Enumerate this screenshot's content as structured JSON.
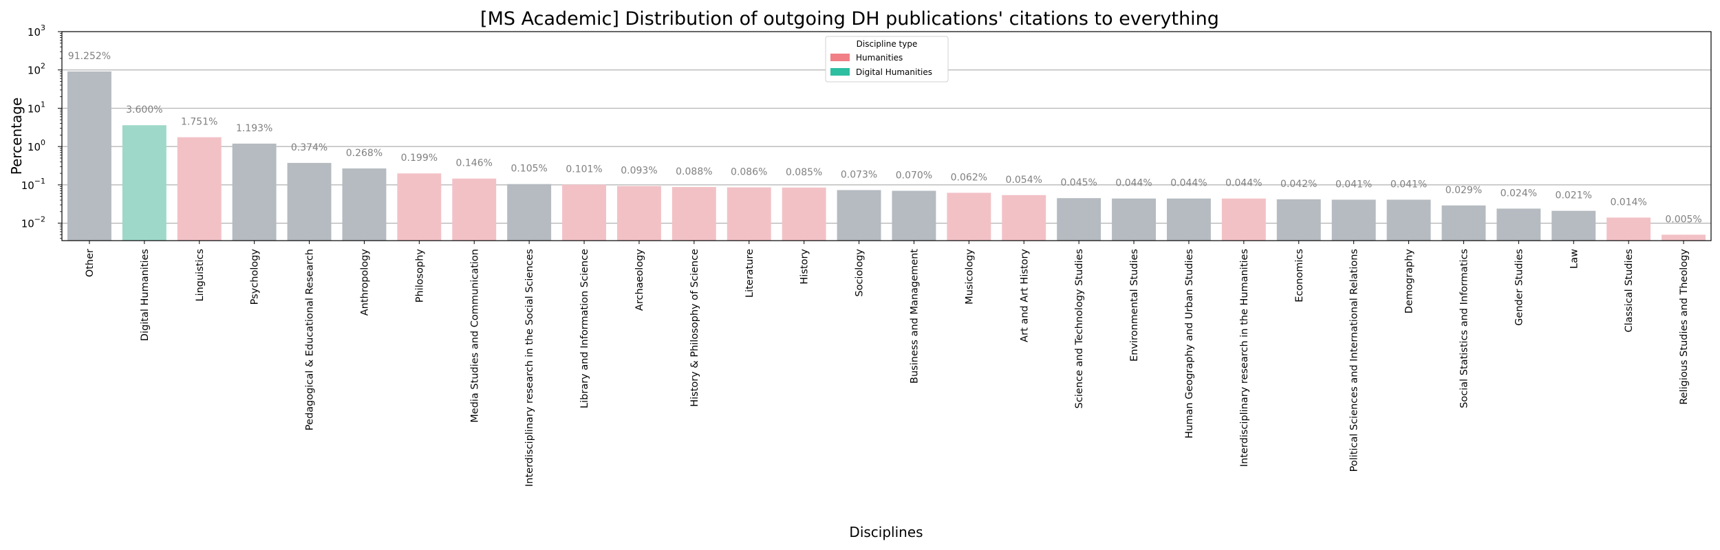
{
  "chart_data": {
    "type": "bar",
    "title": "[MS Academic] Distribution of outgoing DH publications' citations to everything",
    "xlabel": "Disciplines",
    "ylabel": "Percentage",
    "yscale": "log",
    "ylim": [
      0.0035,
      1000
    ],
    "yticks": [
      {
        "value": 0.01,
        "base": "10",
        "exp": "−2"
      },
      {
        "value": 0.1,
        "base": "10",
        "exp": "−1"
      },
      {
        "value": 1,
        "base": "10",
        "exp": "0"
      },
      {
        "value": 10,
        "base": "10",
        "exp": "1"
      },
      {
        "value": 100,
        "base": "10",
        "exp": "2"
      },
      {
        "value": 1000,
        "base": "10",
        "exp": "3"
      }
    ],
    "grid": "horizontal major lines",
    "legend": {
      "title": "Discipline type",
      "position": "top-center",
      "entries": [
        {
          "label": "Humanities",
          "color": "#f07f86"
        },
        {
          "label": "Digital Humanities",
          "color": "#2ebea0"
        }
      ]
    },
    "colors": {
      "other": "#b5bbc0",
      "humanities": "#f2c1c6",
      "digital_humanities": "#9ed8c8",
      "value_label": "#808080"
    },
    "bars": [
      {
        "category": "Other",
        "value": 91.252,
        "label": "91.252%",
        "type": "other"
      },
      {
        "category": "Digital Humanities",
        "value": 3.6,
        "label": "3.600%",
        "type": "digital_humanities"
      },
      {
        "category": "Linguistics",
        "value": 1.751,
        "label": "1.751%",
        "type": "humanities"
      },
      {
        "category": "Psychology",
        "value": 1.193,
        "label": "1.193%",
        "type": "other"
      },
      {
        "category": "Pedagogical & Educational Research",
        "value": 0.374,
        "label": "0.374%",
        "type": "other"
      },
      {
        "category": "Anthropology",
        "value": 0.268,
        "label": "0.268%",
        "type": "other"
      },
      {
        "category": "Philosophy",
        "value": 0.199,
        "label": "0.199%",
        "type": "humanities"
      },
      {
        "category": "Media Studies and Communication",
        "value": 0.146,
        "label": "0.146%",
        "type": "humanities"
      },
      {
        "category": "Interdisciplinary research in the Social Sciences",
        "value": 0.105,
        "label": "0.105%",
        "type": "other"
      },
      {
        "category": "Library and Information Science",
        "value": 0.101,
        "label": "0.101%",
        "type": "humanities"
      },
      {
        "category": "Archaeology",
        "value": 0.093,
        "label": "0.093%",
        "type": "humanities"
      },
      {
        "category": "History & Philosophy of Science",
        "value": 0.088,
        "label": "0.088%",
        "type": "humanities"
      },
      {
        "category": "Literature",
        "value": 0.086,
        "label": "0.086%",
        "type": "humanities"
      },
      {
        "category": "History",
        "value": 0.085,
        "label": "0.085%",
        "type": "humanities"
      },
      {
        "category": "Sociology",
        "value": 0.073,
        "label": "0.073%",
        "type": "other"
      },
      {
        "category": "Business and Management",
        "value": 0.07,
        "label": "0.070%",
        "type": "other"
      },
      {
        "category": "Musicology",
        "value": 0.062,
        "label": "0.062%",
        "type": "humanities"
      },
      {
        "category": "Art and Art History",
        "value": 0.054,
        "label": "0.054%",
        "type": "humanities"
      },
      {
        "category": "Science and Technology Studies",
        "value": 0.045,
        "label": "0.045%",
        "type": "other"
      },
      {
        "category": "Environmental Studies",
        "value": 0.044,
        "label": "0.044%",
        "type": "other"
      },
      {
        "category": "Human Geography and Urban Studies",
        "value": 0.044,
        "label": "0.044%",
        "type": "other"
      },
      {
        "category": "Interdisciplinary research in the Humanities",
        "value": 0.044,
        "label": "0.044%",
        "type": "humanities"
      },
      {
        "category": "Economics",
        "value": 0.042,
        "label": "0.042%",
        "type": "other"
      },
      {
        "category": "Political Sciences and International Relations",
        "value": 0.041,
        "label": "0.041%",
        "type": "other"
      },
      {
        "category": "Demography",
        "value": 0.041,
        "label": "0.041%",
        "type": "other"
      },
      {
        "category": "Social Statistics and Informatics",
        "value": 0.029,
        "label": "0.029%",
        "type": "other"
      },
      {
        "category": "Gender Studies",
        "value": 0.024,
        "label": "0.024%",
        "type": "other"
      },
      {
        "category": "Law",
        "value": 0.021,
        "label": "0.021%",
        "type": "other"
      },
      {
        "category": "Classical Studies",
        "value": 0.014,
        "label": "0.014%",
        "type": "humanities"
      },
      {
        "category": "Religious Studies and Theology",
        "value": 0.005,
        "label": "0.005%",
        "type": "humanities"
      }
    ]
  }
}
